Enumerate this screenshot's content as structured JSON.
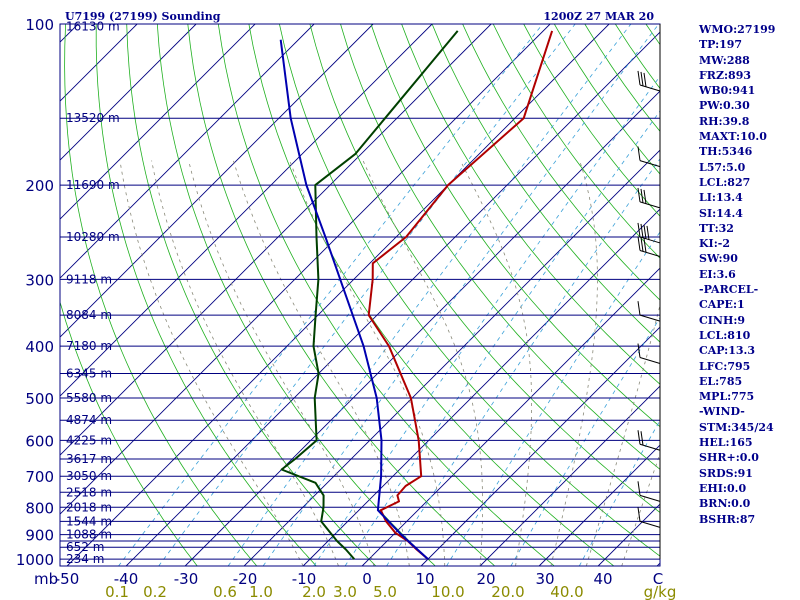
{
  "header": {
    "station": "U7199 (27199) Sounding",
    "time": "1200Z 27 MAR 20"
  },
  "stats": [
    "WMO:27199",
    "TP:197",
    "MW:288",
    "FRZ:893",
    "WB0:941",
    "PW:0.30",
    "RH:39.8",
    "MAXT:10.0",
    "TH:5346",
    "L57:5.0",
    "LCL:827",
    "LI:13.4",
    "SI:14.4",
    "TT:32",
    "KI:-2",
    "SW:90",
    "EI:3.6",
    "-PARCEL-",
    "CAPE:1",
    "CINH:9",
    "LCL:810",
    "CAP:13.3",
    "LFC:795",
    "EL:785",
    "MPL:775",
    "-WIND-",
    "STM:345/24",
    "HEL:165",
    "SHR+:0.0",
    "SRDS:91",
    "EHI:0.0",
    "BRN:0.0",
    "BSHR:87"
  ],
  "chart_data": {
    "type": "line",
    "title": "U7199 (27199) Sounding",
    "subtitle": "1200Z 27 MAR 20",
    "xlabel": "",
    "ylabel": "mb",
    "pressure_levels": [
      100,
      200,
      300,
      400,
      500,
      600,
      700,
      800,
      900,
      1000
    ],
    "isobar_lines": [
      100,
      150,
      200,
      250,
      300,
      350,
      400,
      450,
      500,
      550,
      600,
      650,
      700,
      750,
      800,
      850,
      900,
      925,
      950,
      1000
    ],
    "temperature_ticks": [
      "-50",
      "-40",
      "-30",
      "-20",
      "-10",
      "0",
      "10",
      "20",
      "30",
      "40",
      "C"
    ],
    "mixing_ratio_ticks": [
      "0.1",
      "0.2",
      "0.6",
      "1.0",
      "2.0",
      "3.0",
      "5.0",
      "10.0",
      "20.0",
      "40.0",
      "g/kg"
    ],
    "height_labels": [
      {
        "p": 101,
        "label": "16130 m"
      },
      {
        "p": 150,
        "label": "13520 m"
      },
      {
        "p": 200,
        "label": "11690 m"
      },
      {
        "p": 250,
        "label": "10280 m"
      },
      {
        "p": 300,
        "label": "9118 m"
      },
      {
        "p": 350,
        "label": "8084 m"
      },
      {
        "p": 400,
        "label": "7180 m"
      },
      {
        "p": 450,
        "label": "6345 m"
      },
      {
        "p": 500,
        "label": "5580 m"
      },
      {
        "p": 550,
        "label": "4874 m"
      },
      {
        "p": 600,
        "label": "4225 m"
      },
      {
        "p": 650,
        "label": "3617 m"
      },
      {
        "p": 700,
        "label": "3050 m"
      },
      {
        "p": 750,
        "label": "2518 m"
      },
      {
        "p": 800,
        "label": "2018 m"
      },
      {
        "p": 850,
        "label": "1544 m"
      },
      {
        "p": 900,
        "label": "1088 m"
      },
      {
        "p": 950,
        "label": "652 m"
      },
      {
        "p": 1000,
        "label": "234 m"
      }
    ],
    "series": [
      {
        "kind": "temperature",
        "color": "#b00000",
        "points": [
          {
            "p": 1000,
            "t": 10.0
          },
          {
            "p": 960,
            "t": 6.5
          },
          {
            "p": 925,
            "t": 3.5
          },
          {
            "p": 893,
            "t": 0.0
          },
          {
            "p": 850,
            "t": -3.5
          },
          {
            "p": 810,
            "t": -6.3
          },
          {
            "p": 780,
            "t": -4.7
          },
          {
            "p": 760,
            "t": -6.0
          },
          {
            "p": 730,
            "t": -6.2
          },
          {
            "p": 700,
            "t": -5.2
          },
          {
            "p": 600,
            "t": -11.7
          },
          {
            "p": 500,
            "t": -20.2
          },
          {
            "p": 400,
            "t": -32.7
          },
          {
            "p": 350,
            "t": -41.4
          },
          {
            "p": 300,
            "t": -46.8
          },
          {
            "p": 280,
            "t": -49.5
          },
          {
            "p": 250,
            "t": -48.3
          },
          {
            "p": 200,
            "t": -50.0
          },
          {
            "p": 150,
            "t": -48.5
          },
          {
            "p": 103,
            "t": -58.5
          }
        ]
      },
      {
        "kind": "dewpoint",
        "color": "#004000",
        "points": [
          {
            "p": 1000,
            "t": -2.5
          },
          {
            "p": 960,
            "t": -5.5
          },
          {
            "p": 925,
            "t": -8.5
          },
          {
            "p": 850,
            "t": -14.5
          },
          {
            "p": 800,
            "t": -16.5
          },
          {
            "p": 760,
            "t": -18.5
          },
          {
            "p": 720,
            "t": -22.0
          },
          {
            "p": 680,
            "t": -30.0
          },
          {
            "p": 650,
            "t": -29.5
          },
          {
            "p": 600,
            "t": -29.0
          },
          {
            "p": 500,
            "t": -36.5
          },
          {
            "p": 450,
            "t": -40.0
          },
          {
            "p": 400,
            "t": -45.5
          },
          {
            "p": 350,
            "t": -50.4
          },
          {
            "p": 300,
            "t": -56.0
          },
          {
            "p": 250,
            "t": -63.5
          },
          {
            "p": 200,
            "t": -72.5
          },
          {
            "p": 175,
            "t": -71.0
          },
          {
            "p": 150,
            "t": -72.0
          },
          {
            "p": 103,
            "t": -74.5
          }
        ]
      },
      {
        "kind": "parcel",
        "color": "#0000b0",
        "points": [
          {
            "p": 1000,
            "t": 10.0
          },
          {
            "p": 900,
            "t": 1.3
          },
          {
            "p": 810,
            "t": -6.8
          },
          {
            "p": 700,
            "t": -12.0
          },
          {
            "p": 600,
            "t": -18.0
          },
          {
            "p": 500,
            "t": -26.0
          },
          {
            "p": 400,
            "t": -37.0
          },
          {
            "p": 300,
            "t": -52.3
          },
          {
            "p": 250,
            "t": -62.0
          },
          {
            "p": 200,
            "t": -74.0
          },
          {
            "p": 150,
            "t": -88.0
          },
          {
            "p": 107,
            "t": -103.0
          }
        ]
      }
    ]
  }
}
